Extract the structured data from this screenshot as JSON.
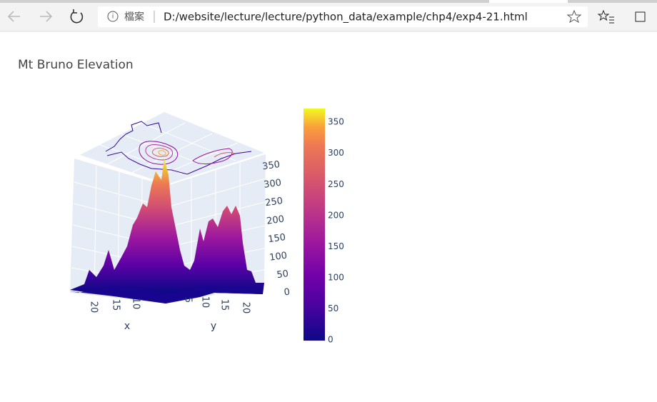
{
  "browser": {
    "file_label": "檔案",
    "url": "D:/website/lecture/lecture/python_data/example/chp4/exp4-21.html"
  },
  "plot": {
    "title": "Mt Bruno Elevation",
    "x_label": "x",
    "y_label": "y",
    "x_ticks": [
      20,
      15,
      10
    ],
    "y_ticks": [
      5,
      10,
      15,
      20
    ],
    "z_ticks": [
      0,
      50,
      100,
      150,
      200,
      250,
      300,
      350
    ],
    "colorbar_ticks": [
      0,
      50,
      100,
      150,
      200,
      250,
      300,
      350
    ]
  }
}
